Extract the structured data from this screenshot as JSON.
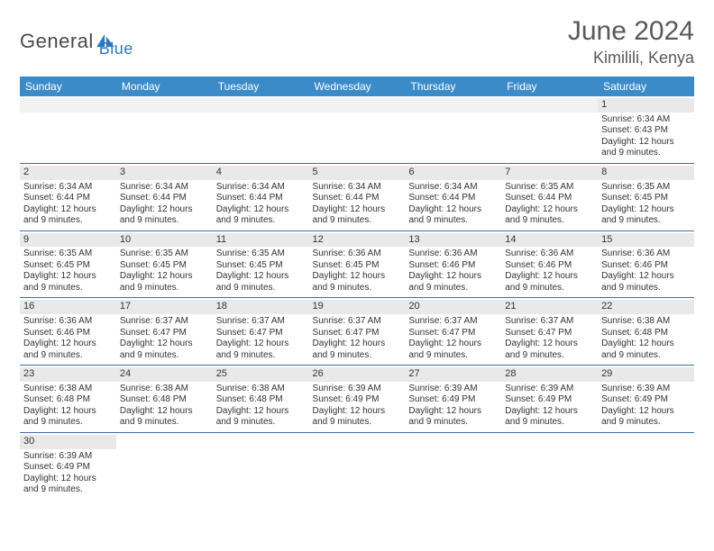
{
  "brand": {
    "part1": "General",
    "part2": "Blue"
  },
  "title": "June 2024",
  "location": "Kimilili, Kenya",
  "colors": {
    "header_bg": "#3b8bc9",
    "header_text": "#ffffff",
    "row_divider": "#3b6ea5",
    "daynum_bg": "#e9e9e9",
    "blank_bg": "#f2f2f2",
    "title_color": "#595959",
    "brand_blue": "#2b7bbf"
  },
  "weekdays": [
    "Sunday",
    "Monday",
    "Tuesday",
    "Wednesday",
    "Thursday",
    "Friday",
    "Saturday"
  ],
  "weeks": [
    [
      {
        "blank": true
      },
      {
        "blank": true
      },
      {
        "blank": true
      },
      {
        "blank": true
      },
      {
        "blank": true
      },
      {
        "blank": true
      },
      {
        "day": "1",
        "sunrise": "Sunrise: 6:34 AM",
        "sunset": "Sunset: 6:43 PM",
        "dl1": "Daylight: 12 hours",
        "dl2": "and 9 minutes."
      }
    ],
    [
      {
        "day": "2",
        "sunrise": "Sunrise: 6:34 AM",
        "sunset": "Sunset: 6:44 PM",
        "dl1": "Daylight: 12 hours",
        "dl2": "and 9 minutes."
      },
      {
        "day": "3",
        "sunrise": "Sunrise: 6:34 AM",
        "sunset": "Sunset: 6:44 PM",
        "dl1": "Daylight: 12 hours",
        "dl2": "and 9 minutes."
      },
      {
        "day": "4",
        "sunrise": "Sunrise: 6:34 AM",
        "sunset": "Sunset: 6:44 PM",
        "dl1": "Daylight: 12 hours",
        "dl2": "and 9 minutes."
      },
      {
        "day": "5",
        "sunrise": "Sunrise: 6:34 AM",
        "sunset": "Sunset: 6:44 PM",
        "dl1": "Daylight: 12 hours",
        "dl2": "and 9 minutes."
      },
      {
        "day": "6",
        "sunrise": "Sunrise: 6:34 AM",
        "sunset": "Sunset: 6:44 PM",
        "dl1": "Daylight: 12 hours",
        "dl2": "and 9 minutes."
      },
      {
        "day": "7",
        "sunrise": "Sunrise: 6:35 AM",
        "sunset": "Sunset: 6:44 PM",
        "dl1": "Daylight: 12 hours",
        "dl2": "and 9 minutes."
      },
      {
        "day": "8",
        "sunrise": "Sunrise: 6:35 AM",
        "sunset": "Sunset: 6:45 PM",
        "dl1": "Daylight: 12 hours",
        "dl2": "and 9 minutes."
      }
    ],
    [
      {
        "day": "9",
        "sunrise": "Sunrise: 6:35 AM",
        "sunset": "Sunset: 6:45 PM",
        "dl1": "Daylight: 12 hours",
        "dl2": "and 9 minutes."
      },
      {
        "day": "10",
        "sunrise": "Sunrise: 6:35 AM",
        "sunset": "Sunset: 6:45 PM",
        "dl1": "Daylight: 12 hours",
        "dl2": "and 9 minutes."
      },
      {
        "day": "11",
        "sunrise": "Sunrise: 6:35 AM",
        "sunset": "Sunset: 6:45 PM",
        "dl1": "Daylight: 12 hours",
        "dl2": "and 9 minutes."
      },
      {
        "day": "12",
        "sunrise": "Sunrise: 6:36 AM",
        "sunset": "Sunset: 6:45 PM",
        "dl1": "Daylight: 12 hours",
        "dl2": "and 9 minutes."
      },
      {
        "day": "13",
        "sunrise": "Sunrise: 6:36 AM",
        "sunset": "Sunset: 6:46 PM",
        "dl1": "Daylight: 12 hours",
        "dl2": "and 9 minutes."
      },
      {
        "day": "14",
        "sunrise": "Sunrise: 6:36 AM",
        "sunset": "Sunset: 6:46 PM",
        "dl1": "Daylight: 12 hours",
        "dl2": "and 9 minutes."
      },
      {
        "day": "15",
        "sunrise": "Sunrise: 6:36 AM",
        "sunset": "Sunset: 6:46 PM",
        "dl1": "Daylight: 12 hours",
        "dl2": "and 9 minutes."
      }
    ],
    [
      {
        "day": "16",
        "sunrise": "Sunrise: 6:36 AM",
        "sunset": "Sunset: 6:46 PM",
        "dl1": "Daylight: 12 hours",
        "dl2": "and 9 minutes."
      },
      {
        "day": "17",
        "sunrise": "Sunrise: 6:37 AM",
        "sunset": "Sunset: 6:47 PM",
        "dl1": "Daylight: 12 hours",
        "dl2": "and 9 minutes."
      },
      {
        "day": "18",
        "sunrise": "Sunrise: 6:37 AM",
        "sunset": "Sunset: 6:47 PM",
        "dl1": "Daylight: 12 hours",
        "dl2": "and 9 minutes."
      },
      {
        "day": "19",
        "sunrise": "Sunrise: 6:37 AM",
        "sunset": "Sunset: 6:47 PM",
        "dl1": "Daylight: 12 hours",
        "dl2": "and 9 minutes."
      },
      {
        "day": "20",
        "sunrise": "Sunrise: 6:37 AM",
        "sunset": "Sunset: 6:47 PM",
        "dl1": "Daylight: 12 hours",
        "dl2": "and 9 minutes."
      },
      {
        "day": "21",
        "sunrise": "Sunrise: 6:37 AM",
        "sunset": "Sunset: 6:47 PM",
        "dl1": "Daylight: 12 hours",
        "dl2": "and 9 minutes."
      },
      {
        "day": "22",
        "sunrise": "Sunrise: 6:38 AM",
        "sunset": "Sunset: 6:48 PM",
        "dl1": "Daylight: 12 hours",
        "dl2": "and 9 minutes."
      }
    ],
    [
      {
        "day": "23",
        "sunrise": "Sunrise: 6:38 AM",
        "sunset": "Sunset: 6:48 PM",
        "dl1": "Daylight: 12 hours",
        "dl2": "and 9 minutes."
      },
      {
        "day": "24",
        "sunrise": "Sunrise: 6:38 AM",
        "sunset": "Sunset: 6:48 PM",
        "dl1": "Daylight: 12 hours",
        "dl2": "and 9 minutes."
      },
      {
        "day": "25",
        "sunrise": "Sunrise: 6:38 AM",
        "sunset": "Sunset: 6:48 PM",
        "dl1": "Daylight: 12 hours",
        "dl2": "and 9 minutes."
      },
      {
        "day": "26",
        "sunrise": "Sunrise: 6:39 AM",
        "sunset": "Sunset: 6:49 PM",
        "dl1": "Daylight: 12 hours",
        "dl2": "and 9 minutes."
      },
      {
        "day": "27",
        "sunrise": "Sunrise: 6:39 AM",
        "sunset": "Sunset: 6:49 PM",
        "dl1": "Daylight: 12 hours",
        "dl2": "and 9 minutes."
      },
      {
        "day": "28",
        "sunrise": "Sunrise: 6:39 AM",
        "sunset": "Sunset: 6:49 PM",
        "dl1": "Daylight: 12 hours",
        "dl2": "and 9 minutes."
      },
      {
        "day": "29",
        "sunrise": "Sunrise: 6:39 AM",
        "sunset": "Sunset: 6:49 PM",
        "dl1": "Daylight: 12 hours",
        "dl2": "and 9 minutes."
      }
    ],
    [
      {
        "day": "30",
        "sunrise": "Sunrise: 6:39 AM",
        "sunset": "Sunset: 6:49 PM",
        "dl1": "Daylight: 12 hours",
        "dl2": "and 9 minutes."
      },
      {
        "empty": true
      },
      {
        "empty": true
      },
      {
        "empty": true
      },
      {
        "empty": true
      },
      {
        "empty": true
      },
      {
        "empty": true
      }
    ]
  ]
}
